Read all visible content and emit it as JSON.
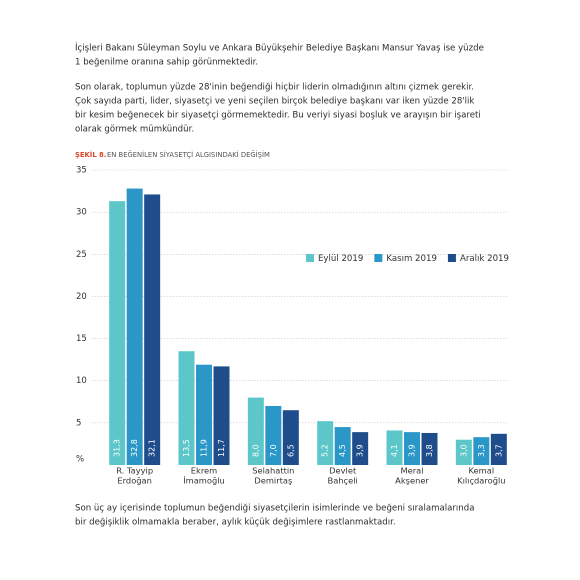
{
  "paragraphs": [
    [
      "İçişleri Bakanı Süleyman Soylu ve Ankara Büyükşehir Belediye Başkanı Mansur Yavaş ise yüzde",
      "1 beğenilme oranına sahip görünmektedir."
    ],
    [
      "Son olarak, toplumun yüzde 28'inin beğendiği hiçbir liderin olmadığının altını çizmek gerekir.",
      "Çok sayıda parti, lider, siyasetçi ve yeni seçilen birçok belediye başkanı var iken yüzde 28'lik",
      "bir kesim beğenecek bir siyasetçi görmemektedir. Bu veriyi siyasi boşluk ve arayışın bir işareti",
      "olarak görmek mümkündür."
    ]
  ],
  "closing": [
    "Son üç ay içerisinde toplumun beğendiği siyasetçilerin isimlerinde ve beğeni sıralamalarında",
    "bir değişiklik olmamakla beraber, aylık küçük değişimlere rastlanmaktadır."
  ],
  "chart_data": {
    "type": "bar",
    "figure_label": "ŞEKİL 8.",
    "title": "EN BEĞENİLEN SİYASETÇİ ALGISINDAKİ DEĞİŞİM",
    "categories": [
      [
        "R. Tayyip",
        "Erdoğan"
      ],
      [
        "Ekrem",
        "İmamoğlu"
      ],
      [
        "Selahattin",
        "Demirtaş"
      ],
      [
        "Devlet",
        "Bahçeli"
      ],
      [
        "Meral",
        "Akşener"
      ],
      [
        "Kemal",
        "Kılıçdaroğlu"
      ]
    ],
    "series": [
      {
        "name": "Eylül 2019",
        "color": "#5cc6c9",
        "values": [
          31.3,
          13.5,
          8.0,
          5.2,
          4.1,
          3.0
        ],
        "value_labels": [
          "31,3",
          "13,5",
          "8,0",
          "5,2",
          "4,1",
          "3,0"
        ]
      },
      {
        "name": "Kasım 2019",
        "color": "#2a97c8",
        "values": [
          32.8,
          11.9,
          7.0,
          4.5,
          3.9,
          3.3
        ],
        "value_labels": [
          "32,8",
          "11,9",
          "7,0",
          "4,5",
          "3,9",
          "3,3"
        ]
      },
      {
        "name": "Aralık 2019",
        "color": "#1f4d8c",
        "values": [
          32.1,
          11.7,
          6.5,
          3.9,
          3.8,
          3.7
        ],
        "value_labels": [
          "32,1",
          "11,7",
          "6,5",
          "3,9",
          "3,8",
          "3,7"
        ]
      }
    ],
    "ylim": [
      0,
      35
    ],
    "yticks": [
      {
        "value": 0,
        "label": "%"
      },
      5,
      10,
      15,
      20,
      25,
      30,
      35
    ],
    "grid": true
  }
}
